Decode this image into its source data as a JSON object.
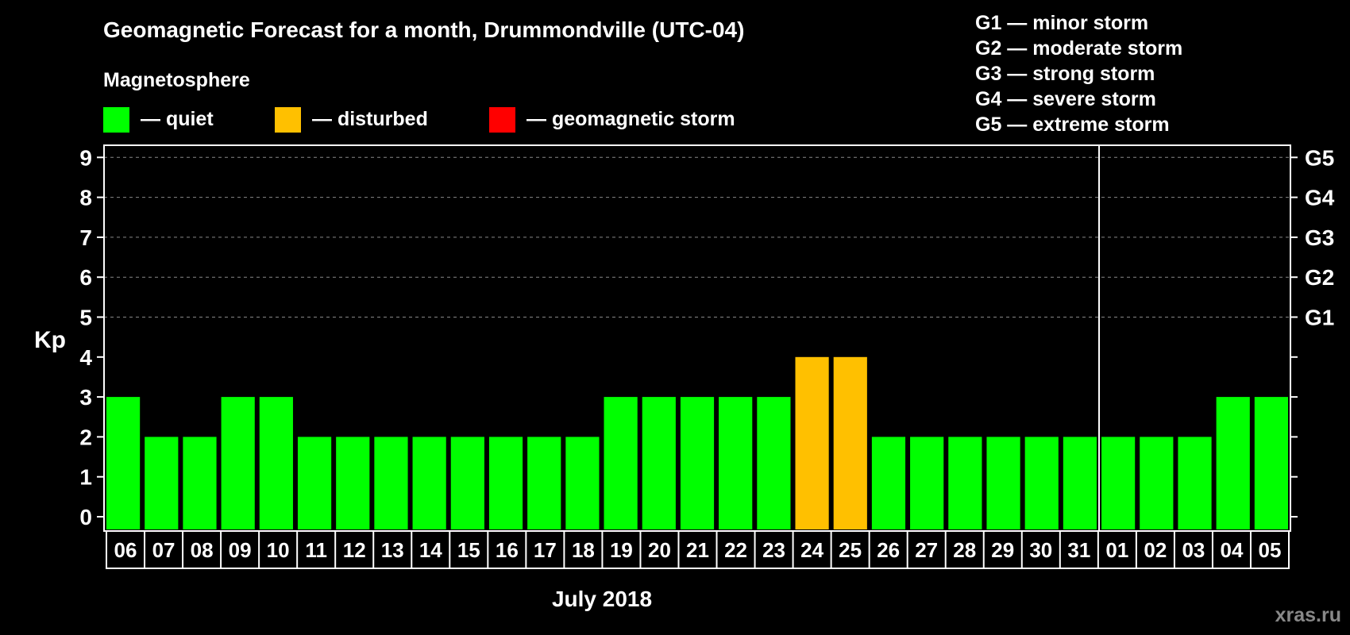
{
  "chart_data": {
    "type": "bar",
    "title": "Geomagnetic Forecast for a month, Drummondville (UTC-04)",
    "legend_title": "Magnetosphere",
    "legend": [
      {
        "label": "— quiet",
        "color": "#00ff00"
      },
      {
        "label": "— disturbed",
        "color": "#ffc000"
      },
      {
        "label": "— geomagnetic storm",
        "color": "#ff0000"
      }
    ],
    "storm_scale": [
      "G1 — minor storm",
      "G2 — moderate storm",
      "G3 — strong storm",
      "G4 — severe storm",
      "G5 — extreme storm"
    ],
    "ylabel": "Kp",
    "xlabel": "July 2018",
    "ylim": [
      0,
      9
    ],
    "yticks": [
      "0",
      "1",
      "2",
      "3",
      "4",
      "5",
      "6",
      "7",
      "8",
      "9"
    ],
    "right_ticks": [
      {
        "value": 5,
        "label": "G1"
      },
      {
        "value": 6,
        "label": "G2"
      },
      {
        "value": 7,
        "label": "G3"
      },
      {
        "value": 8,
        "label": "G4"
      },
      {
        "value": 9,
        "label": "G5"
      }
    ],
    "categories": [
      "06",
      "07",
      "08",
      "09",
      "10",
      "11",
      "12",
      "13",
      "14",
      "15",
      "16",
      "17",
      "18",
      "19",
      "20",
      "21",
      "22",
      "23",
      "24",
      "25",
      "26",
      "27",
      "28",
      "29",
      "30",
      "31",
      "01",
      "02",
      "03",
      "04",
      "05"
    ],
    "values": [
      3,
      2,
      2,
      3,
      3,
      2,
      2,
      2,
      2,
      2,
      2,
      2,
      2,
      3,
      3,
      3,
      3,
      3,
      4,
      4,
      2,
      2,
      2,
      2,
      2,
      2,
      2,
      2,
      2,
      3,
      3
    ],
    "month_divider_after": "31",
    "watermark": "xras.ru"
  },
  "colors": {
    "quiet": "#00ff00",
    "disturbed": "#ffc000",
    "storm": "#ff0000",
    "grid": "#888888"
  }
}
